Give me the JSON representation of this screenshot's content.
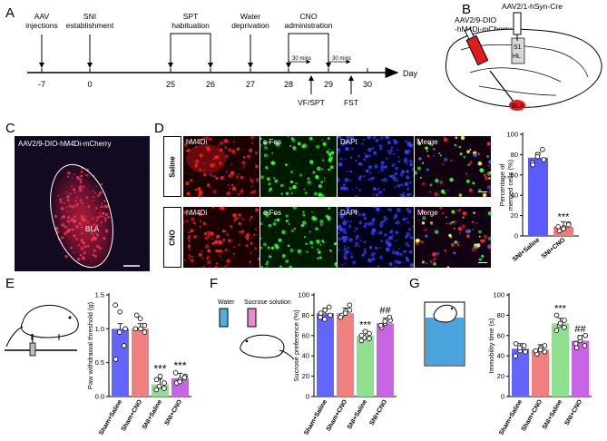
{
  "panels": {
    "A": "A",
    "B": "B",
    "C": "C",
    "D": "D",
    "E": "E",
    "F": "F",
    "G": "G"
  },
  "timeline": {
    "unit": "Day",
    "ticks": [
      "-7",
      "0",
      "25",
      "26",
      "27",
      "28",
      "29",
      "30"
    ],
    "top_events": [
      {
        "lines": [
          "AAV",
          "injections"
        ]
      },
      {
        "lines": [
          "SNI",
          "establishment"
        ]
      },
      {
        "lines": [
          "SPT",
          "habituation"
        ]
      },
      {
        "lines": [
          "Water",
          "deprivation"
        ]
      },
      {
        "lines": [
          "CNO",
          "administration"
        ]
      }
    ],
    "bottom_events": [
      "VF/SPT",
      "FST"
    ],
    "interval_label": "30 mins"
  },
  "panel_b": {
    "virus1": [
      "AAV2/9-DIO",
      "-hM4Di-mCherry"
    ],
    "virus2": "AAV2/1-hSyn-Cre",
    "region_s1": "S1",
    "region_hl": "HL",
    "region_bla": "BLA"
  },
  "panel_c": {
    "caption": "AAV2/9-DIO-hM4Di-mCherry",
    "region": "BLA"
  },
  "panel_d": {
    "rows": [
      "Saline",
      "CNO"
    ],
    "columns": [
      "hM4Di",
      "c-Fos",
      "DAPI",
      "Merge"
    ]
  },
  "chart_data": [
    {
      "panel": "D",
      "type": "bar",
      "categories": [
        "SNI+Saline",
        "SNI+CNO"
      ],
      "values": [
        77,
        9
      ],
      "points": [
        [
          72,
          80,
          85,
          70,
          78,
          75
        ],
        [
          5,
          8,
          12,
          9,
          7,
          11
        ]
      ],
      "colors": [
        "#5b5bff",
        "#f07a7a"
      ],
      "ylabel": [
        "Percentage of",
        "merged cells (%)"
      ],
      "ylim": [
        0,
        100
      ],
      "yticks": [
        0,
        20,
        40,
        60,
        80,
        100
      ],
      "annotations": [
        {
          "category": "SNI+CNO",
          "text": "***"
        }
      ]
    },
    {
      "panel": "E",
      "type": "bar",
      "categories": [
        "Sham+Saline",
        "Sham+CNO",
        "SNI+Saline",
        "SNI+CNO"
      ],
      "values": [
        1.0,
        1.0,
        0.18,
        0.27
      ],
      "points": [
        [
          1.35,
          1.25,
          0.75,
          0.55,
          0.95,
          1.0
        ],
        [
          1.2,
          1.0,
          0.95,
          1.0,
          1.15,
          1.05
        ],
        [
          0.1,
          0.15,
          0.2,
          0.25,
          0.3,
          0.12
        ],
        [
          0.2,
          0.25,
          0.3,
          0.35,
          0.22,
          0.28
        ]
      ],
      "colors": [
        "#6464ff",
        "#f08080",
        "#8ee08e",
        "#c864e6"
      ],
      "ylabel": "Paw withdrawal threshold (g)",
      "ylim": [
        0,
        1.5
      ],
      "yticks": [
        0.0,
        0.5,
        1.0,
        1.5
      ],
      "tickfmt": "0.0",
      "annotations": [
        {
          "category": "SNI+Saline",
          "text": "***"
        },
        {
          "category": "SNI+CNO",
          "text": "***"
        }
      ]
    },
    {
      "panel": "F",
      "type": "bar",
      "categories": [
        "Sham+Saline",
        "Sham+CNO",
        "SNI+Saline",
        "SNI+CNO"
      ],
      "values": [
        82,
        82,
        60,
        72
      ],
      "points": [
        [
          78,
          85,
          88,
          82,
          76,
          80
        ],
        [
          80,
          84,
          90,
          78,
          82,
          85
        ],
        [
          55,
          58,
          62,
          60,
          64,
          57
        ],
        [
          68,
          72,
          75,
          70,
          74,
          78
        ]
      ],
      "colors": [
        "#6464ff",
        "#f08080",
        "#8ee08e",
        "#c864e6"
      ],
      "ylabel": "Sucrose preference (%)",
      "ylim": [
        0,
        100
      ],
      "yticks": [
        0,
        20,
        40,
        60,
        80,
        100
      ],
      "annotations": [
        {
          "category": "SNI+Saline",
          "text": "***"
        },
        {
          "category": "SNI+CNO",
          "text": "##"
        }
      ]
    },
    {
      "panel": "G",
      "type": "bar",
      "categories": [
        "Sham+Saline",
        "Sham+CNO",
        "SNI+Saline",
        "SNI+CNO"
      ],
      "values": [
        47,
        46,
        72,
        55
      ],
      "points": [
        [
          40,
          45,
          50,
          52,
          48,
          44
        ],
        [
          42,
          48,
          50,
          45,
          46,
          44
        ],
        [
          65,
          70,
          75,
          80,
          72,
          68
        ],
        [
          48,
          55,
          60,
          52,
          58,
          50
        ]
      ],
      "colors": [
        "#6464ff",
        "#f08080",
        "#8ee08e",
        "#c864e6"
      ],
      "ylabel": "Immobility time (s)",
      "ylim": [
        0,
        100
      ],
      "yticks": [
        0,
        20,
        40,
        60,
        80,
        100
      ],
      "annotations": [
        {
          "category": "SNI+Saline",
          "text": "***"
        },
        {
          "category": "SNI+CNO",
          "text": "##"
        }
      ]
    }
  ],
  "panel_f": {
    "water": "Water",
    "sucrose": "Sucrose solution"
  }
}
